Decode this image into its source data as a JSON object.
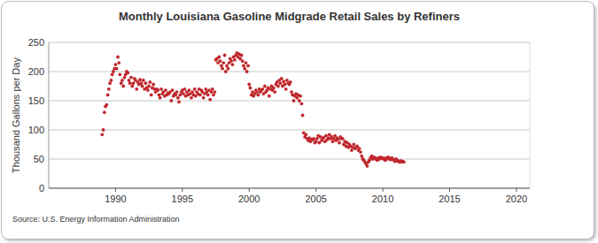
{
  "chart_data": {
    "type": "scatter",
    "title": "Monthly Louisiana Gasoline Midgrade Retail Sales by Refiners",
    "y_label": "Thousand Gallons per Day",
    "source": "Source: U.S. Energy Information Administration",
    "color": "#c0282d",
    "marker": "circle",
    "grid": true,
    "xlim": [
      1985,
      2021
    ],
    "xticks": [
      1990,
      1995,
      2000,
      2005,
      2010,
      2015,
      2020
    ],
    "ylim": [
      0,
      250
    ],
    "yticks": [
      0,
      50,
      100,
      150,
      200,
      250
    ],
    "x": [
      1989.0,
      1989.08,
      1989.17,
      1989.25,
      1989.33,
      1989.42,
      1989.5,
      1989.58,
      1989.67,
      1989.75,
      1989.83,
      1989.92,
      1990.0,
      1990.08,
      1990.17,
      1990.25,
      1990.33,
      1990.42,
      1990.5,
      1990.58,
      1990.67,
      1990.75,
      1990.83,
      1990.92,
      1991.0,
      1991.08,
      1991.17,
      1991.25,
      1991.33,
      1991.42,
      1991.5,
      1991.58,
      1991.67,
      1991.75,
      1991.83,
      1991.92,
      1992.0,
      1992.08,
      1992.17,
      1992.25,
      1992.33,
      1992.42,
      1992.5,
      1992.58,
      1992.67,
      1992.75,
      1992.83,
      1992.92,
      1993.0,
      1993.08,
      1993.17,
      1993.25,
      1993.33,
      1993.42,
      1993.5,
      1993.58,
      1993.67,
      1993.75,
      1993.83,
      1993.92,
      1994.0,
      1994.08,
      1994.17,
      1994.25,
      1994.33,
      1994.42,
      1994.5,
      1994.58,
      1994.67,
      1994.75,
      1994.83,
      1994.92,
      1995.0,
      1995.08,
      1995.17,
      1995.25,
      1995.33,
      1995.42,
      1995.5,
      1995.58,
      1995.67,
      1995.75,
      1995.83,
      1995.92,
      1996.0,
      1996.08,
      1996.17,
      1996.25,
      1996.33,
      1996.42,
      1996.5,
      1996.58,
      1996.67,
      1996.75,
      1996.83,
      1996.92,
      1997.0,
      1997.08,
      1997.17,
      1997.25,
      1997.33,
      1997.42,
      1997.5,
      1997.58,
      1997.67,
      1997.75,
      1997.83,
      1997.92,
      1998.0,
      1998.08,
      1998.17,
      1998.25,
      1998.33,
      1998.42,
      1998.5,
      1998.58,
      1998.67,
      1998.75,
      1998.83,
      1998.92,
      1999.0,
      1999.08,
      1999.17,
      1999.25,
      1999.33,
      1999.42,
      1999.5,
      1999.58,
      1999.67,
      1999.75,
      1999.83,
      1999.92,
      2000.0,
      2000.08,
      2000.17,
      2000.25,
      2000.33,
      2000.42,
      2000.5,
      2000.58,
      2000.67,
      2000.75,
      2000.83,
      2000.92,
      2001.0,
      2001.08,
      2001.17,
      2001.25,
      2001.33,
      2001.42,
      2001.5,
      2001.58,
      2001.67,
      2001.75,
      2001.83,
      2001.92,
      2002.0,
      2002.08,
      2002.17,
      2002.25,
      2002.33,
      2002.42,
      2002.5,
      2002.58,
      2002.67,
      2002.75,
      2002.83,
      2002.92,
      2003.0,
      2003.08,
      2003.17,
      2003.25,
      2003.33,
      2003.42,
      2003.5,
      2003.58,
      2003.67,
      2003.75,
      2003.83,
      2003.92,
      2004.0,
      2004.08,
      2004.17,
      2004.25,
      2004.33,
      2004.42,
      2004.5,
      2004.58,
      2004.67,
      2004.75,
      2004.83,
      2004.92,
      2005.0,
      2005.08,
      2005.17,
      2005.25,
      2005.33,
      2005.42,
      2005.5,
      2005.58,
      2005.67,
      2005.75,
      2005.83,
      2005.92,
      2006.0,
      2006.08,
      2006.17,
      2006.25,
      2006.33,
      2006.42,
      2006.5,
      2006.58,
      2006.67,
      2006.75,
      2006.83,
      2006.92,
      2007.0,
      2007.08,
      2007.17,
      2007.25,
      2007.33,
      2007.42,
      2007.5,
      2007.58,
      2007.67,
      2007.75,
      2007.83,
      2007.92,
      2008.0,
      2008.08,
      2008.17,
      2008.25,
      2008.33,
      2008.42,
      2008.5,
      2008.58,
      2008.67,
      2008.75,
      2008.83,
      2008.92,
      2009.0,
      2009.08,
      2009.17,
      2009.25,
      2009.33,
      2009.42,
      2009.5,
      2009.58,
      2009.67,
      2009.75,
      2009.83,
      2009.92,
      2010.0,
      2010.08,
      2010.17,
      2010.25,
      2010.33,
      2010.42,
      2010.5,
      2010.58,
      2010.67,
      2010.75,
      2010.83,
      2010.92,
      2011.0,
      2011.08,
      2011.17,
      2011.25,
      2011.33,
      2011.42,
      2011.5,
      2011.58
    ],
    "values": [
      92,
      100,
      130,
      140,
      143,
      160,
      170,
      180,
      185,
      195,
      200,
      205,
      212,
      205,
      225,
      215,
      195,
      180,
      185,
      175,
      190,
      195,
      200,
      198,
      185,
      180,
      190,
      175,
      180,
      188,
      185,
      170,
      182,
      178,
      186,
      180,
      175,
      185,
      170,
      180,
      172,
      168,
      175,
      182,
      160,
      172,
      178,
      170,
      165,
      170,
      168,
      160,
      155,
      170,
      162,
      165,
      158,
      168,
      160,
      163,
      162,
      165,
      150,
      168,
      158,
      162,
      160,
      165,
      155,
      148,
      160,
      165,
      168,
      162,
      170,
      158,
      165,
      160,
      168,
      162,
      155,
      165,
      160,
      170,
      158,
      165,
      162,
      170,
      160,
      168,
      165,
      155,
      162,
      170,
      165,
      160,
      168,
      152,
      165,
      170,
      160,
      165,
      220,
      222,
      215,
      225,
      218,
      210,
      205,
      215,
      228,
      200,
      210,
      205,
      215,
      222,
      218,
      212,
      225,
      220,
      228,
      232,
      225,
      230,
      222,
      228,
      218,
      210,
      205,
      215,
      200,
      210,
      178,
      172,
      160,
      165,
      158,
      162,
      168,
      165,
      160,
      170,
      165,
      168,
      170,
      162,
      175,
      165,
      168,
      172,
      158,
      170,
      175,
      168,
      172,
      165,
      178,
      182,
      175,
      185,
      180,
      188,
      175,
      183,
      178,
      170,
      185,
      180,
      178,
      182,
      165,
      160,
      150,
      158,
      162,
      155,
      160,
      150,
      158,
      145,
      125,
      95,
      88,
      92,
      85,
      82,
      86,
      80,
      84,
      83,
      85,
      78,
      80,
      85,
      90,
      78,
      88,
      82,
      85,
      87,
      80,
      90,
      83,
      86,
      92,
      85,
      88,
      80,
      85,
      90,
      82,
      86,
      84,
      78,
      88,
      85,
      85,
      75,
      80,
      72,
      78,
      70,
      75,
      72,
      65,
      70,
      75,
      68,
      70,
      72,
      65,
      68,
      62,
      55,
      50,
      48,
      45,
      42,
      38,
      45,
      48,
      52,
      55,
      50,
      53,
      52,
      50,
      48,
      52,
      50,
      53,
      51,
      52,
      50,
      48,
      52,
      50,
      53,
      51,
      49,
      52,
      50,
      48,
      46,
      50,
      48,
      46,
      45,
      47,
      45,
      46,
      45
    ]
  }
}
